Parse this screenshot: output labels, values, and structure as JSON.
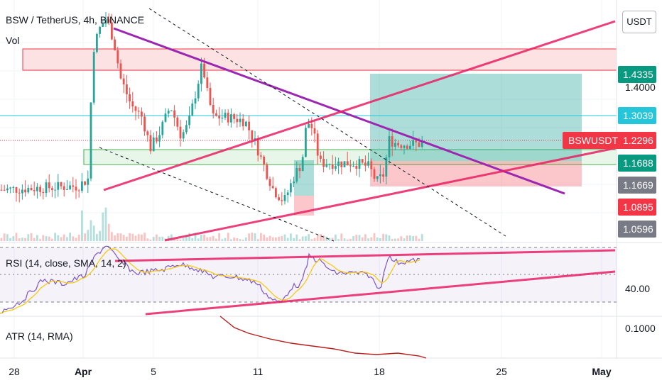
{
  "header": {
    "symbol_title": "BSW / TetherUS, 4h, BINANCE",
    "vol_label": "Vol",
    "currency": "USDT"
  },
  "price_axis": {
    "tick": "1.4000",
    "badges": [
      {
        "text": "1.4335",
        "color": "#089981"
      },
      {
        "text": "1.3039",
        "color": "#26c6da"
      },
      {
        "text": "1.2296",
        "color": "#f23645"
      },
      {
        "text": "1.1688",
        "color": "#089981"
      },
      {
        "text": "1.1669",
        "color": "#787b86"
      },
      {
        "text": "1.0895",
        "color": "#f23645"
      },
      {
        "text": "1.0596",
        "color": "#787b86"
      }
    ],
    "symbol_tag": "BSWUSDT"
  },
  "rsi_pane": {
    "legend": "RSI (14, close, SMA, 14, 2)",
    "level": "40.00"
  },
  "atr_pane": {
    "legend": "ATR (14, RMA)",
    "level": "0.1000"
  },
  "time_axis": {
    "ticks": [
      {
        "label": "28",
        "bold": false
      },
      {
        "label": "Apr",
        "bold": true
      },
      {
        "label": "5",
        "bold": false
      },
      {
        "label": "11",
        "bold": false
      },
      {
        "label": "18",
        "bold": false
      },
      {
        "label": "25",
        "bold": false
      },
      {
        "label": "May",
        "bold": true
      }
    ]
  },
  "chart_data": {
    "type": "candlestick",
    "symbol": "BSW / TetherUS",
    "interval": "4h",
    "exchange": "BINANCE",
    "y_range": [
      1.02,
      1.58
    ],
    "current_price": 1.2296,
    "x_dates": [
      "Mar 28",
      "Apr 1",
      "Apr 5",
      "Apr 11",
      "Apr 18",
      "Apr 25",
      "May 1"
    ],
    "ohlc_approx": [
      {
        "date": "Apr 1",
        "open": 1.1,
        "high": 1.56,
        "low": 1.06,
        "close": 1.5
      },
      {
        "date": "Apr 2",
        "open": 1.5,
        "high": 1.55,
        "low": 1.4,
        "close": 1.44
      },
      {
        "date": "Apr 3",
        "open": 1.44,
        "high": 1.47,
        "low": 1.32,
        "close": 1.35
      },
      {
        "date": "Apr 5",
        "open": 1.35,
        "high": 1.38,
        "low": 1.18,
        "close": 1.2
      },
      {
        "date": "Apr 7",
        "open": 1.2,
        "high": 1.4,
        "low": 1.19,
        "close": 1.38
      },
      {
        "date": "Apr 8",
        "open": 1.38,
        "high": 1.48,
        "low": 1.3,
        "close": 1.32
      },
      {
        "date": "Apr 10",
        "open": 1.32,
        "high": 1.34,
        "low": 1.22,
        "close": 1.24
      },
      {
        "date": "Apr 12",
        "open": 1.24,
        "high": 1.25,
        "low": 1.07,
        "close": 1.08
      },
      {
        "date": "Apr 14",
        "open": 1.08,
        "high": 1.29,
        "low": 1.07,
        "close": 1.2
      },
      {
        "date": "Apr 16",
        "open": 1.2,
        "high": 1.22,
        "low": 1.16,
        "close": 1.18
      },
      {
        "date": "Apr 18",
        "open": 1.15,
        "high": 1.24,
        "low": 1.12,
        "close": 1.22
      },
      {
        "date": "Apr 20",
        "open": 1.22,
        "high": 1.3,
        "low": 1.2,
        "close": 1.2296
      }
    ],
    "drawings": {
      "resistance_zone": [
        1.48,
        1.5
      ],
      "support_zone": [
        1.165,
        1.17
      ],
      "long_target": 1.4335,
      "long_entry": 1.1688,
      "long_stop": 1.1669
    },
    "rsi_level": 40
  }
}
